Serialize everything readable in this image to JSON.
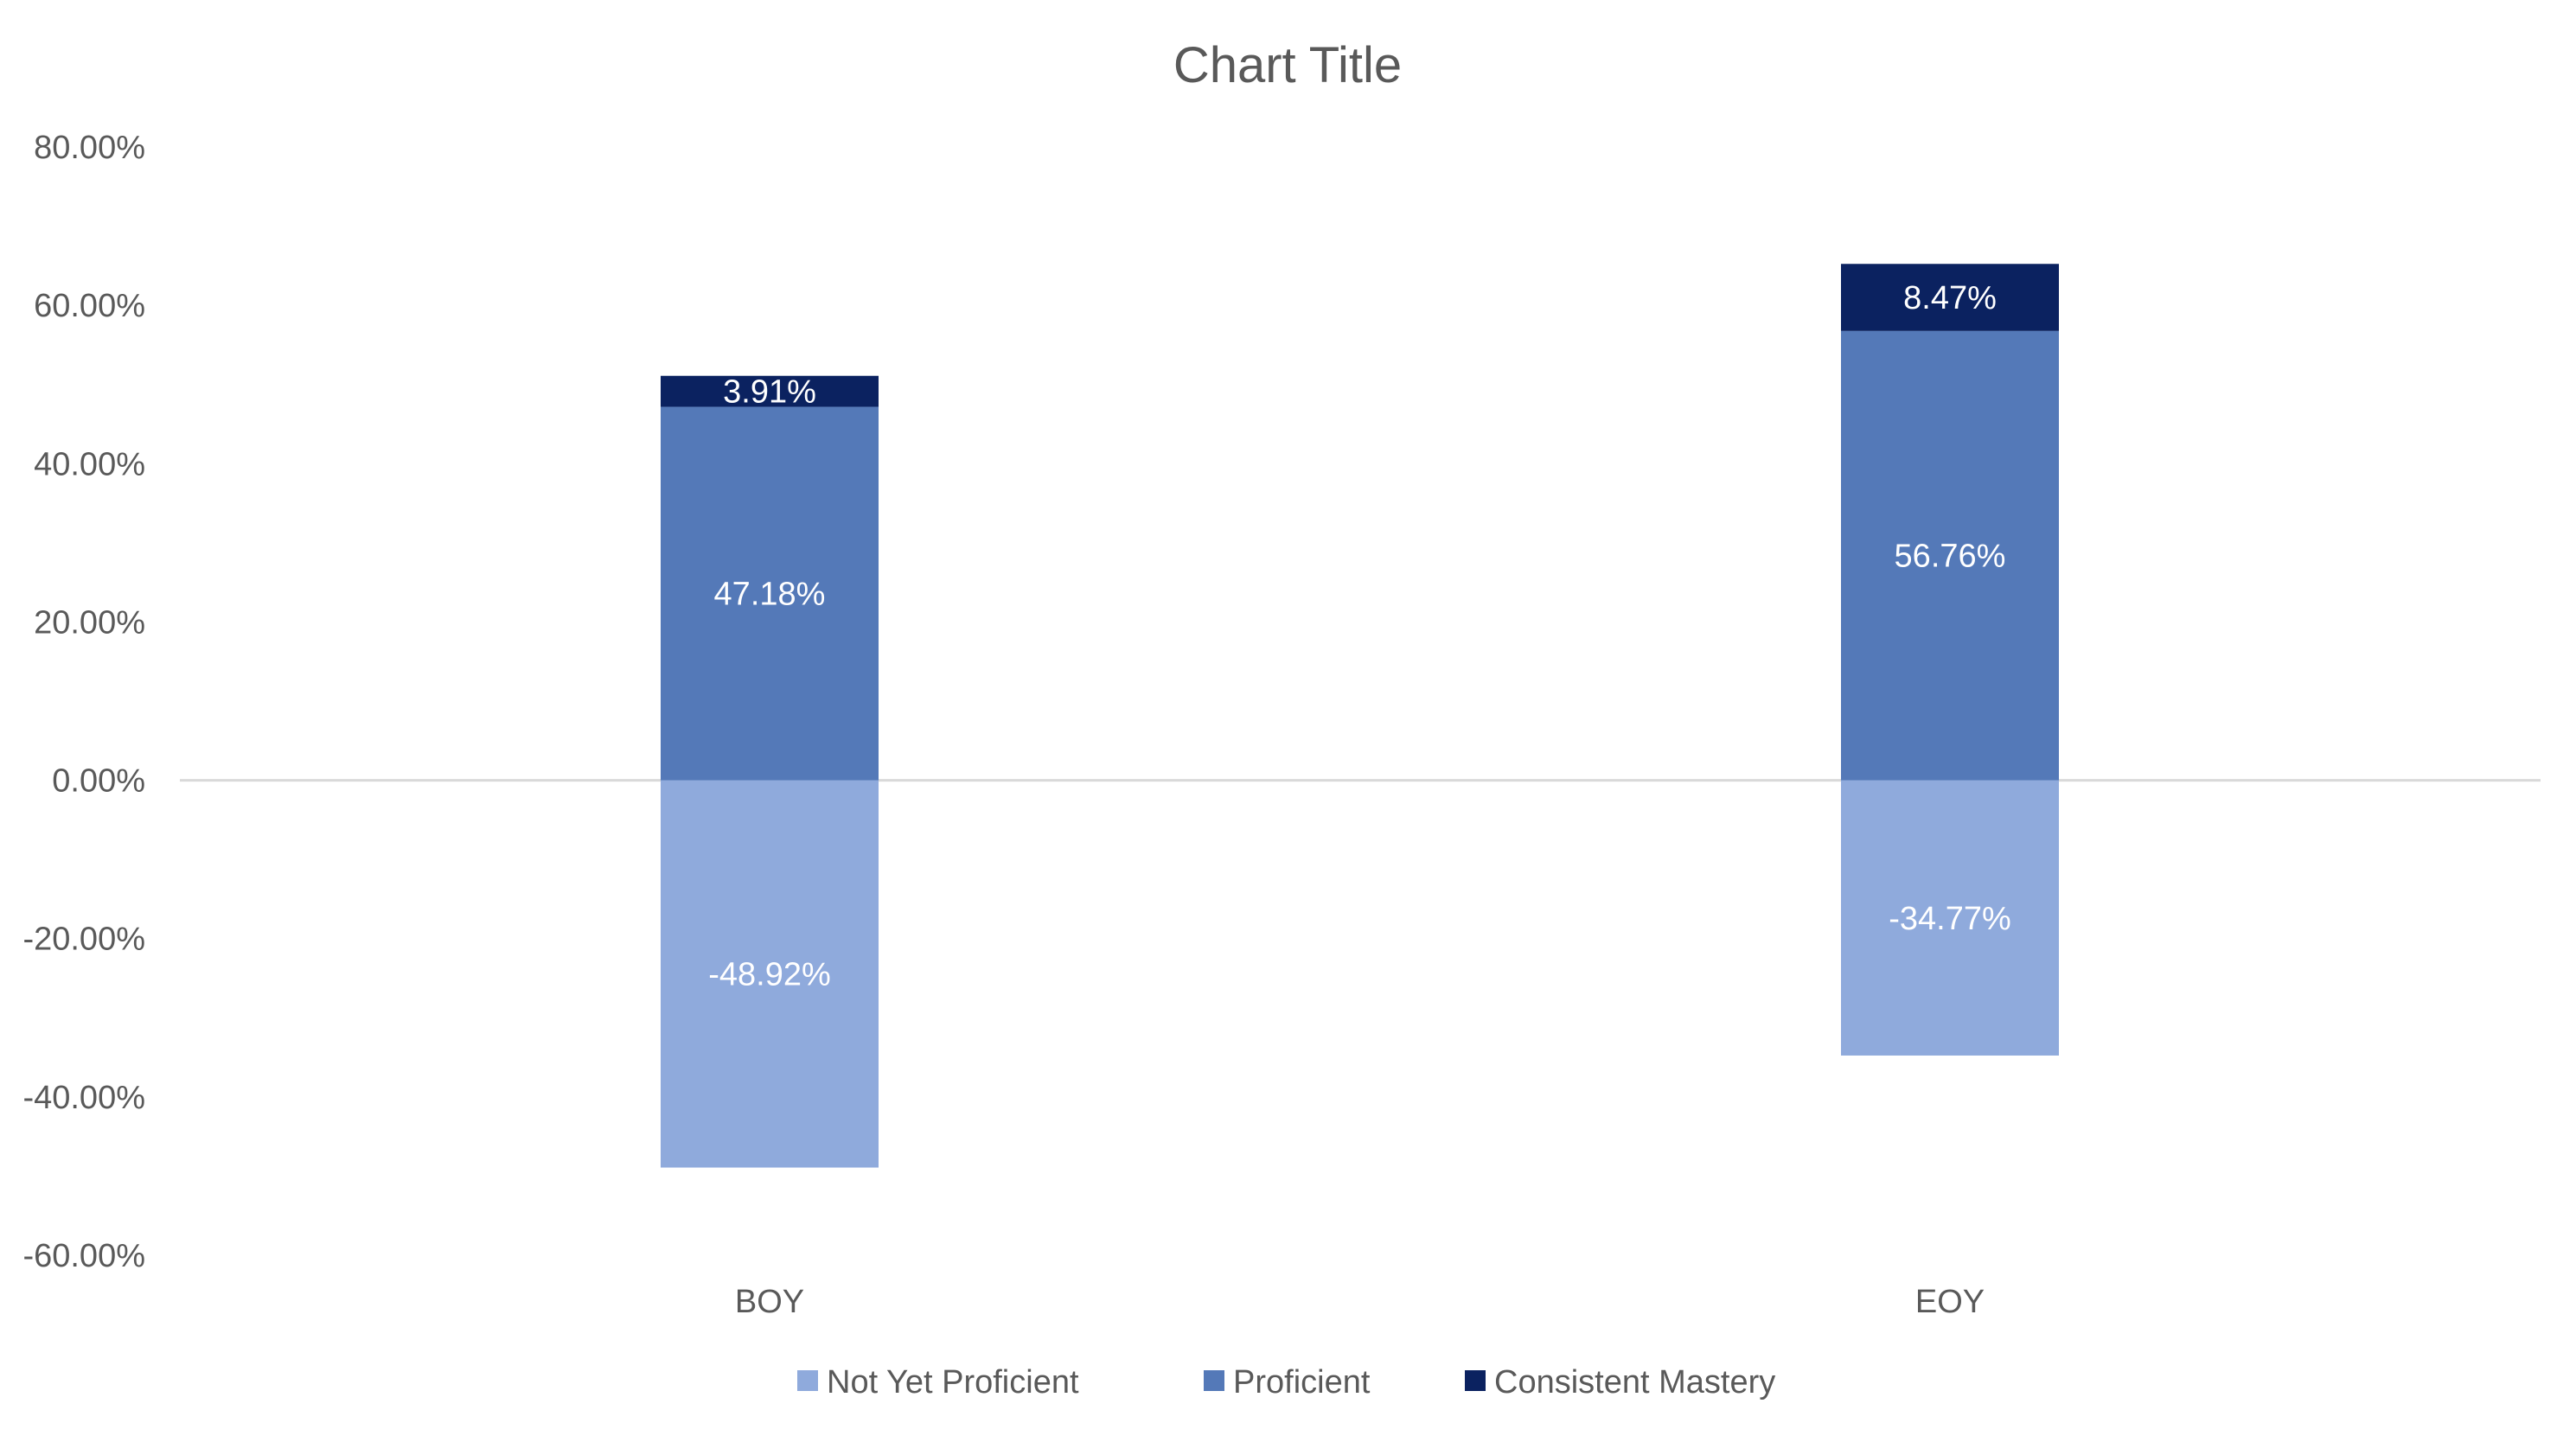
{
  "chart_data": {
    "type": "bar",
    "stacked": true,
    "title": "Chart Title",
    "xlabel": "",
    "ylabel": "",
    "categories": [
      "BOY",
      "EOY"
    ],
    "ylim": [
      -60,
      80
    ],
    "y_ticks": [
      80,
      60,
      40,
      20,
      0,
      -20,
      -40,
      -60
    ],
    "y_tick_labels": [
      "80.00%",
      "60.00%",
      "40.00%",
      "20.00%",
      "0.00%",
      "-20.00%",
      "-40.00%",
      "-60.00%"
    ],
    "grid": false,
    "legend_position": "bottom",
    "series": [
      {
        "name": "Not Yet Proficient",
        "color": "#8FAADC",
        "values": [
          -48.92,
          -34.77
        ],
        "labels": [
          "-48.92%",
          "-34.77%"
        ]
      },
      {
        "name": "Proficient",
        "color": "#5479B8",
        "values": [
          47.18,
          56.76
        ],
        "labels": [
          "47.18%",
          "56.76%"
        ]
      },
      {
        "name": "Consistent Mastery",
        "color": "#0B2260",
        "values": [
          3.91,
          8.47
        ],
        "labels": [
          "3.91%",
          "8.47%"
        ]
      }
    ]
  }
}
